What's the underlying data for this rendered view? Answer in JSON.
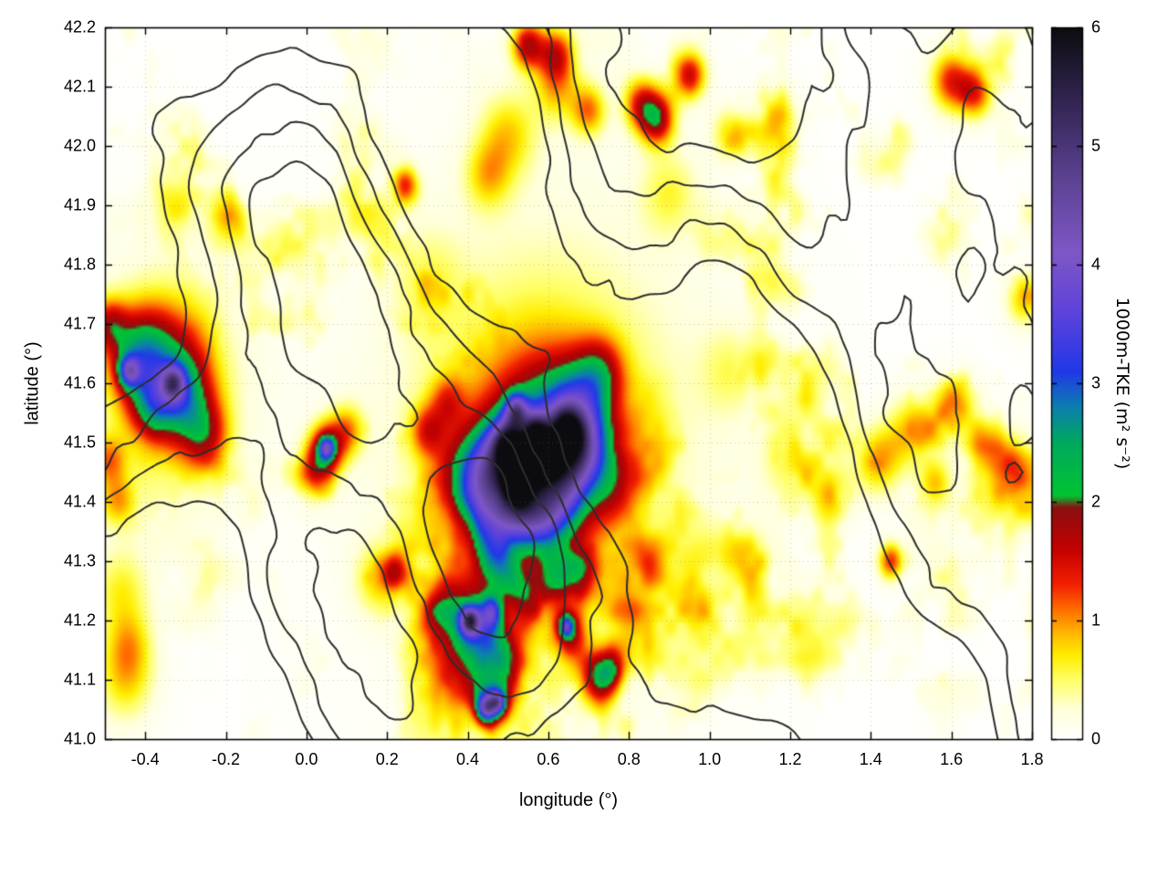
{
  "chart_data": {
    "type": "heatmap",
    "title": "",
    "xlabel": "longitude (°)",
    "ylabel": "latitude (°)",
    "xlim": [
      -0.5,
      1.8
    ],
    "ylim": [
      41.0,
      42.2
    ],
    "grid": "dotted",
    "x_ticks": {
      "values": [
        -0.4,
        -0.2,
        0.0,
        0.2,
        0.4,
        0.6,
        0.8,
        1.0,
        1.2,
        1.4,
        1.6,
        1.8
      ],
      "labels": [
        "-0.4",
        "-0.2",
        "0.0",
        "0.2",
        "0.4",
        "0.6",
        "0.8",
        "1.0",
        "1.2",
        "1.4",
        "1.6",
        "1.8"
      ]
    },
    "y_ticks": {
      "values": [
        41.0,
        41.1,
        41.2,
        41.3,
        41.4,
        41.5,
        41.6,
        41.7,
        41.8,
        41.9,
        42.0,
        42.1,
        42.2
      ],
      "labels": [
        "41.0",
        "41.1",
        "41.2",
        "41.3",
        "41.4",
        "41.5",
        "41.6",
        "41.7",
        "41.8",
        "41.9",
        "42.0",
        "42.1",
        "42.2"
      ]
    },
    "colorbar": {
      "label": "1000m-TKE (m² s⁻²)",
      "min": 0,
      "max": 6,
      "tick_values": [
        0,
        1,
        2,
        3,
        4,
        5,
        6
      ],
      "tick_labels": [
        "0",
        "1",
        "2",
        "3",
        "4",
        "5",
        "6"
      ],
      "palette": [
        [
          0.0,
          "#ffffff"
        ],
        [
          0.25,
          "#ffffd8"
        ],
        [
          0.5,
          "#ffff66"
        ],
        [
          0.7,
          "#ffee00"
        ],
        [
          0.9,
          "#ffb300"
        ],
        [
          1.1,
          "#ff6a00"
        ],
        [
          1.3,
          "#f22000"
        ],
        [
          1.6,
          "#c40000"
        ],
        [
          1.95,
          "#8a1010"
        ],
        [
          2.05,
          "#00c432"
        ],
        [
          2.5,
          "#00a95e"
        ],
        [
          2.8,
          "#0b7fae"
        ],
        [
          3.1,
          "#2038e8"
        ],
        [
          3.6,
          "#5e42da"
        ],
        [
          4.1,
          "#7e57c6"
        ],
        [
          4.7,
          "#5d4394"
        ],
        [
          5.3,
          "#37285a"
        ],
        [
          6.0,
          "#0c0c10"
        ]
      ]
    },
    "hotspots": [
      [
        0.58,
        41.48,
        1.2,
        0.14
      ],
      [
        0.55,
        41.45,
        1.4,
        0.08
      ],
      [
        0.62,
        41.52,
        1.4,
        0.07
      ],
      [
        0.5,
        41.43,
        1.5,
        0.05
      ],
      [
        0.46,
        41.47,
        1.5,
        0.045
      ],
      [
        0.66,
        41.47,
        1.4,
        0.04
      ],
      [
        0.7,
        41.5,
        1.2,
        0.04
      ],
      [
        0.63,
        41.41,
        1.4,
        0.045
      ],
      [
        0.58,
        41.37,
        1.3,
        0.04
      ],
      [
        0.52,
        41.38,
        1.3,
        0.035
      ],
      [
        0.68,
        41.57,
        1.2,
        0.05
      ],
      [
        0.73,
        41.62,
        1.0,
        0.04
      ],
      [
        0.76,
        41.43,
        0.9,
        0.045
      ],
      [
        0.42,
        41.41,
        1.1,
        0.04
      ],
      [
        0.45,
        41.34,
        1.1,
        0.035
      ],
      [
        0.38,
        41.45,
        0.9,
        0.05
      ],
      [
        0.47,
        41.3,
        0.9,
        0.035
      ],
      [
        0.5,
        41.27,
        0.8,
        0.03
      ],
      [
        0.3,
        41.52,
        1.0,
        0.03
      ],
      [
        0.35,
        41.57,
        0.8,
        0.03
      ],
      [
        0.5,
        41.5,
        2.4,
        0.028
      ],
      [
        0.555,
        41.47,
        2.3,
        0.03
      ],
      [
        0.6,
        41.475,
        2.2,
        0.024
      ],
      [
        0.645,
        41.52,
        2.4,
        0.028
      ],
      [
        0.52,
        41.555,
        2.2,
        0.02
      ],
      [
        0.57,
        41.52,
        2.0,
        0.02
      ],
      [
        0.525,
        41.435,
        3.4,
        0.022
      ],
      [
        0.6,
        41.5,
        0.5,
        0.28
      ],
      [
        -0.35,
        41.63,
        1.5,
        0.07
      ],
      [
        -0.42,
        41.65,
        1.4,
        0.05
      ],
      [
        -0.3,
        41.57,
        1.3,
        0.05
      ],
      [
        -0.25,
        41.51,
        1.2,
        0.04
      ],
      [
        -0.38,
        41.56,
        1.2,
        0.04
      ],
      [
        -0.44,
        41.62,
        2.1,
        0.018
      ],
      [
        -0.33,
        41.6,
        2.15,
        0.02
      ],
      [
        -0.35,
        41.6,
        0.5,
        0.14
      ],
      [
        -0.49,
        41.7,
        1.2,
        0.03
      ],
      [
        -0.49,
        41.47,
        0.9,
        0.03
      ],
      [
        -0.47,
        41.4,
        0.8,
        0.03
      ],
      [
        0.05,
        41.49,
        1.7,
        0.03
      ],
      [
        0.05,
        41.49,
        2.1,
        0.013
      ],
      [
        0.02,
        41.45,
        1.1,
        0.03
      ],
      [
        0.1,
        41.52,
        0.9,
        0.03
      ],
      [
        0.55,
        42.17,
        1.6,
        0.028
      ],
      [
        0.62,
        42.155,
        1.2,
        0.03
      ],
      [
        0.87,
        42.045,
        1.7,
        0.03
      ],
      [
        0.83,
        42.07,
        1.2,
        0.03
      ],
      [
        0.95,
        42.12,
        1.5,
        0.028
      ],
      [
        0.7,
        42.06,
        1.0,
        0.03
      ],
      [
        0.62,
        42.1,
        0.8,
        0.04
      ],
      [
        0.5,
        42.02,
        0.7,
        0.05
      ],
      [
        0.45,
        41.95,
        0.7,
        0.04
      ],
      [
        0.25,
        41.93,
        1.0,
        0.022
      ],
      [
        1.6,
        42.11,
        1.3,
        0.035
      ],
      [
        1.66,
        42.09,
        1.2,
        0.03
      ],
      [
        1.05,
        42.02,
        0.7,
        0.03
      ],
      [
        1.17,
        42.06,
        0.6,
        0.03
      ],
      [
        0.33,
        41.215,
        1.5,
        0.035
      ],
      [
        0.4,
        41.2,
        1.6,
        0.04
      ],
      [
        0.405,
        41.2,
        2.9,
        0.016
      ],
      [
        0.46,
        41.215,
        2.0,
        0.018
      ],
      [
        0.46,
        41.17,
        1.3,
        0.04
      ],
      [
        0.5,
        41.13,
        1.2,
        0.035
      ],
      [
        0.42,
        41.12,
        0.9,
        0.04
      ],
      [
        0.46,
        41.06,
        1.7,
        0.032
      ],
      [
        0.445,
        41.052,
        2.4,
        0.016
      ],
      [
        0.475,
        41.062,
        2.3,
        0.014
      ],
      [
        0.65,
        41.185,
        1.5,
        0.028
      ],
      [
        0.645,
        41.19,
        2.0,
        0.012
      ],
      [
        0.72,
        41.1,
        1.5,
        0.03
      ],
      [
        0.755,
        41.12,
        1.3,
        0.025
      ],
      [
        0.62,
        41.27,
        1.1,
        0.03
      ],
      [
        0.68,
        41.285,
        1.0,
        0.03
      ],
      [
        0.55,
        41.24,
        0.9,
        0.03
      ],
      [
        0.22,
        41.285,
        1.0,
        0.022
      ],
      [
        0.18,
        41.27,
        0.7,
        0.04
      ],
      [
        0.35,
        41.1,
        0.7,
        0.05
      ],
      [
        -0.45,
        41.1,
        0.7,
        0.05
      ],
      [
        -0.44,
        41.16,
        0.6,
        0.04
      ],
      [
        -0.46,
        41.25,
        0.6,
        0.05
      ],
      [
        1.45,
        41.3,
        1.25,
        0.022
      ],
      [
        1.42,
        41.47,
        0.9,
        0.04
      ],
      [
        1.5,
        41.52,
        0.8,
        0.04
      ],
      [
        1.56,
        41.43,
        0.8,
        0.03
      ],
      [
        1.75,
        41.46,
        0.9,
        0.04
      ],
      [
        1.78,
        41.74,
        0.8,
        0.03
      ],
      [
        1.68,
        41.5,
        0.7,
        0.03
      ],
      [
        1.6,
        41.55,
        0.6,
        0.04
      ],
      [
        1.3,
        41.42,
        0.6,
        0.04
      ],
      [
        1.2,
        41.47,
        0.5,
        0.05
      ],
      [
        0.9,
        41.92,
        0.5,
        0.05
      ],
      [
        -0.2,
        41.87,
        0.6,
        0.035
      ],
      [
        -0.33,
        41.9,
        0.5,
        0.04
      ],
      [
        0.3,
        41.77,
        0.4,
        0.06
      ],
      [
        1.1,
        41.3,
        0.5,
        0.04
      ],
      [
        0.95,
        41.25,
        0.6,
        0.035
      ],
      [
        0.85,
        41.3,
        0.7,
        0.03
      ],
      [
        0.8,
        41.22,
        0.6,
        0.03
      ],
      [
        1.05,
        41.62,
        0.4,
        0.05
      ]
    ],
    "background_noise": {
      "freq": 7,
      "threshold": 0.5,
      "gain": 1.7,
      "mask_freq": 1.3,
      "base": 0.02
    },
    "contours": {
      "levels": [
        -0.8,
        -0.2,
        0.4,
        1.0
      ],
      "color": "#2d2d2d",
      "line_width": 2
    }
  }
}
